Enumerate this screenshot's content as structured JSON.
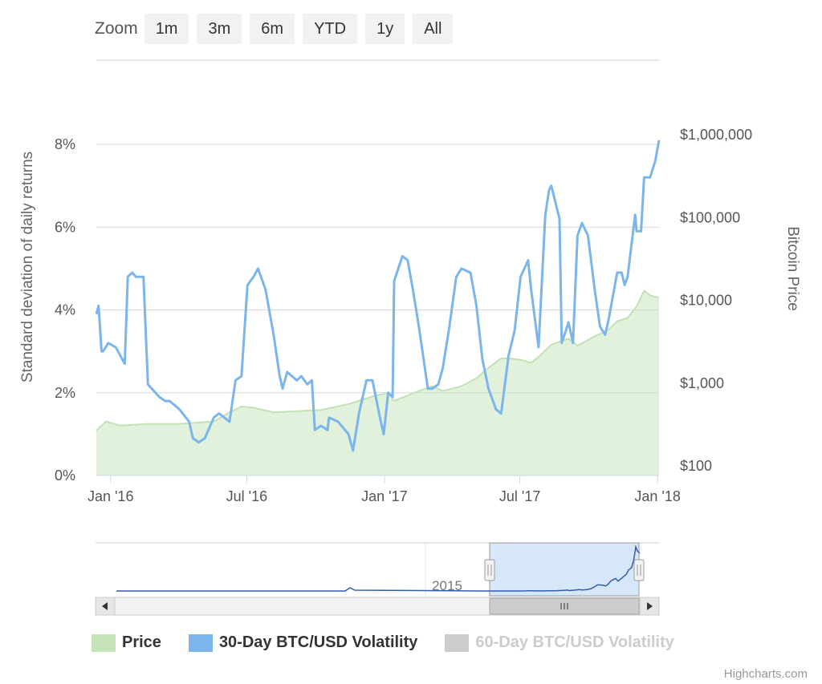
{
  "zoom": {
    "label": "Zoom",
    "buttons": [
      "1m",
      "3m",
      "6m",
      "YTD",
      "1y",
      "All"
    ]
  },
  "colors": {
    "price": "#c4e3b8",
    "price_line": "#c2e2b5",
    "vol30": "#7cb5ec",
    "vol60": "#cccccc",
    "navigator_line": "#335cad",
    "navigator_mask": "#cfe3f8"
  },
  "legend": [
    {
      "name": "Price",
      "color": "#c4e3b8",
      "visible": true
    },
    {
      "name": "30-Day BTC/USD Volatility",
      "color": "#7cb5ec",
      "visible": true
    },
    {
      "name": "60-Day BTC/USD Volatility",
      "color": "#cccccc",
      "visible": false
    }
  ],
  "credits": "Highcharts.com",
  "chart_data": {
    "type": "line",
    "x_ticks": [
      "Jan '16",
      "Jul '16",
      "Jan '17",
      "Jul '17",
      "Jan '18"
    ],
    "x_range": [
      "2015-12-13",
      "2018-01-03"
    ],
    "y_left": {
      "title": "Standard deviation of daily returns",
      "ticks": [
        "0%",
        "2%",
        "4%",
        "6%",
        "8%"
      ],
      "range": [
        0,
        8
      ]
    },
    "y_right": {
      "title": "Bitcoin Price",
      "ticks": [
        "$100",
        "$1,000",
        "$10,000",
        "$100,000",
        "$1,000,000"
      ],
      "range": [
        100,
        1000000
      ],
      "scale": "log"
    },
    "grid": true,
    "legend_position": "bottom",
    "series": [
      {
        "name": "30-Day BTC/USD Volatility",
        "axis": "left",
        "type": "line",
        "x": [
          "2015-12-13",
          "2015-12-16",
          "2015-12-20",
          "2015-12-22",
          "2015-12-29",
          "2016-01-08",
          "2016-01-14",
          "2016-01-20",
          "2016-01-24",
          "2016-01-30",
          "2016-02-04",
          "2016-02-14",
          "2016-02-20",
          "2016-03-06",
          "2016-03-14",
          "2016-03-20",
          "2016-04-02",
          "2016-04-15",
          "2016-04-20",
          "2016-04-28",
          "2016-05-06",
          "2016-05-18",
          "2016-05-25",
          "2016-06-08",
          "2016-06-16",
          "2016-06-24",
          "2016-07-02",
          "2016-07-10",
          "2016-07-16",
          "2016-07-26",
          "2016-08-06",
          "2016-08-14",
          "2016-08-18",
          "2016-08-24",
          "2016-09-06",
          "2016-09-12",
          "2016-09-20",
          "2016-09-26",
          "2016-09-30",
          "2016-10-08",
          "2016-10-17",
          "2016-10-19",
          "2016-10-31",
          "2016-11-14",
          "2016-11-20",
          "2016-11-28",
          "2016-12-08",
          "2016-12-16",
          "2016-12-26",
          "2016-12-31",
          "2017-01-06",
          "2017-01-12",
          "2017-01-14",
          "2017-01-25",
          "2017-02-01",
          "2017-02-08",
          "2017-02-16",
          "2017-02-28",
          "2017-03-06",
          "2017-03-14",
          "2017-03-20",
          "2017-03-28",
          "2017-04-07",
          "2017-04-14",
          "2017-04-26",
          "2017-05-04",
          "2017-05-12",
          "2017-05-20",
          "2017-05-30",
          "2017-06-06",
          "2017-06-16",
          "2017-06-24",
          "2017-07-02",
          "2017-07-12",
          "2017-07-16",
          "2017-07-26",
          "2017-08-04",
          "2017-08-09",
          "2017-08-12",
          "2017-08-23",
          "2017-08-26",
          "2017-09-04",
          "2017-09-10",
          "2017-09-16",
          "2017-09-22",
          "2017-09-30",
          "2017-10-09",
          "2017-10-16",
          "2017-10-23",
          "2017-10-28",
          "2017-11-08",
          "2017-11-14",
          "2017-11-18",
          "2017-11-22",
          "2017-12-02",
          "2017-12-04",
          "2017-12-10",
          "2017-12-14",
          "2017-12-22",
          "2017-12-29",
          "2018-01-03"
        ],
        "values": [
          3.9,
          4.1,
          3.0,
          3.0,
          3.2,
          3.1,
          2.9,
          2.7,
          4.8,
          4.9,
          4.8,
          4.8,
          2.2,
          1.9,
          1.8,
          1.8,
          1.6,
          1.3,
          0.9,
          0.8,
          0.9,
          1.4,
          1.5,
          1.3,
          2.3,
          2.4,
          4.6,
          4.8,
          5.0,
          4.5,
          3.4,
          2.4,
          2.1,
          2.5,
          2.3,
          2.4,
          2.2,
          2.3,
          1.1,
          1.2,
          1.1,
          1.4,
          1.3,
          1.0,
          0.6,
          1.5,
          2.3,
          2.3,
          1.4,
          1.0,
          2.0,
          1.9,
          4.7,
          5.3,
          5.2,
          4.5,
          3.6,
          2.1,
          2.1,
          2.2,
          2.6,
          3.5,
          4.8,
          5.0,
          4.9,
          4.1,
          2.8,
          2.1,
          1.6,
          1.5,
          2.9,
          3.5,
          4.8,
          5.2,
          4.5,
          3.1,
          6.3,
          6.9,
          7.0,
          6.2,
          3.2,
          3.7,
          3.2,
          5.8,
          6.1,
          5.8,
          4.5,
          3.6,
          3.4,
          3.8,
          4.9,
          4.9,
          4.6,
          4.8,
          6.3,
          5.9,
          5.9,
          7.2,
          7.2,
          7.6,
          8.1
        ]
      },
      {
        "name": "Price",
        "axis": "right",
        "type": "area",
        "x": [
          "2015-12-13",
          "2015-12-26",
          "2016-01-14",
          "2016-02-20",
          "2016-04-02",
          "2016-05-18",
          "2016-06-08",
          "2016-06-24",
          "2016-07-10",
          "2016-08-06",
          "2016-09-06",
          "2016-10-08",
          "2016-11-14",
          "2016-12-16",
          "2017-01-06",
          "2017-01-14",
          "2017-02-16",
          "2017-03-06",
          "2017-03-20",
          "2017-04-14",
          "2017-05-04",
          "2017-05-20",
          "2017-06-06",
          "2017-06-16",
          "2017-07-02",
          "2017-07-16",
          "2017-07-26",
          "2017-08-12",
          "2017-09-04",
          "2017-09-16",
          "2017-10-09",
          "2017-10-28",
          "2017-11-08",
          "2017-11-22",
          "2017-12-04",
          "2017-12-14",
          "2017-12-22",
          "2018-01-03"
        ],
        "values": [
          350,
          450,
          400,
          420,
          420,
          450,
          580,
          680,
          660,
          580,
          600,
          620,
          730,
          900,
          1000,
          800,
          1050,
          1200,
          1050,
          1200,
          1500,
          2000,
          2600,
          2600,
          2500,
          2300,
          2700,
          3800,
          4500,
          3700,
          4800,
          5800,
          7300,
          8000,
          11000,
          17000,
          15000,
          14000
        ]
      }
    ],
    "navigator": {
      "label": "2015",
      "selected_range": [
        "2015-12-13",
        "2018-01-03"
      ]
    }
  }
}
